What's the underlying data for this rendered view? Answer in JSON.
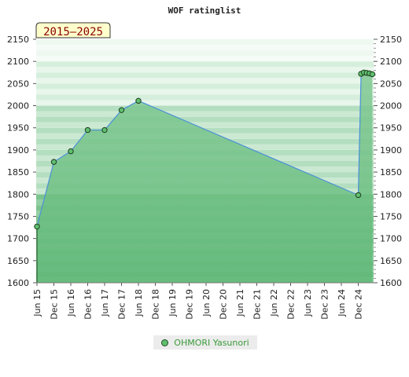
{
  "chart_data": {
    "type": "area",
    "title": "WOF ratinglist",
    "period_label": "2015–2025",
    "ylim": [
      1600,
      2150
    ],
    "yticks": [
      "1600",
      "1650",
      "1700",
      "1750",
      "1800",
      "1850",
      "1900",
      "1950",
      "2000",
      "2050",
      "2100",
      "2150"
    ],
    "xticks": [
      "Jun 15",
      "Dec 15",
      "Jun 16",
      "Dec 16",
      "Jun 17",
      "Dec 17",
      "Jun 18",
      "Dec 18",
      "Jun 19",
      "Dec 19",
      "Jun 20",
      "Dec 20",
      "Jun 21",
      "Dec 21",
      "Jun 22",
      "Dec 22",
      "Jun 23",
      "Dec 23",
      "Jun 24",
      "Dec 24"
    ],
    "series": [
      {
        "name": "OHMORI Yasunori",
        "points": [
          {
            "x": "2015-06",
            "y": 1727
          },
          {
            "x": "2015-12",
            "y": 1873
          },
          {
            "x": "2016-06",
            "y": 1897
          },
          {
            "x": "2016-12",
            "y": 1945
          },
          {
            "x": "2017-06",
            "y": 1945
          },
          {
            "x": "2017-12",
            "y": 1990
          },
          {
            "x": "2018-06",
            "y": 2011
          },
          {
            "x": "2024-12",
            "y": 1798
          },
          {
            "x": "2025-01",
            "y": 2072
          },
          {
            "x": "2025-02",
            "y": 2075
          },
          {
            "x": "2025-03",
            "y": 2074
          },
          {
            "x": "2025-04",
            "y": 2073
          },
          {
            "x": "2025-05",
            "y": 2071
          }
        ]
      }
    ],
    "grid": true,
    "legend": "bottom"
  }
}
